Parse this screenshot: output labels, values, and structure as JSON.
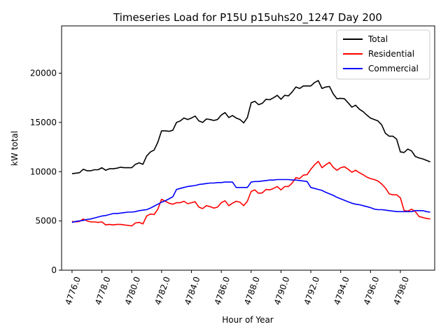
{
  "chart_data": {
    "type": "line",
    "title": "Timeseries Load for P15U p15uhs20_1247  Day 200",
    "xlabel": "Hour of Year",
    "ylabel": "kW total",
    "xlim": [
      4775.3,
      4800.3
    ],
    "ylim": [
      0,
      24800
    ],
    "x_ticks": [
      4776,
      4778,
      4780,
      4782,
      4784,
      4786,
      4788,
      4790,
      4792,
      4794,
      4796,
      4798
    ],
    "x_tick_labels": [
      "4776.0",
      "4778.0",
      "4780.0",
      "4782.0",
      "4784.0",
      "4786.0",
      "4788.0",
      "4790.0",
      "4792.0",
      "4794.0",
      "4796.0",
      "4798.0"
    ],
    "y_ticks": [
      0,
      5000,
      10000,
      15000,
      20000
    ],
    "y_tick_labels": [
      "0",
      "5000",
      "10000",
      "15000",
      "20000"
    ],
    "legend_position": "top-right",
    "x_start": 4776.0,
    "x_step": 0.25,
    "series": [
      {
        "name": "Total",
        "color": "#000000",
        "values": [
          9800,
          9850,
          9900,
          10250,
          10100,
          10100,
          10200,
          10200,
          10400,
          10150,
          10300,
          10300,
          10350,
          10450,
          10400,
          10400,
          10400,
          10750,
          10900,
          10750,
          11600,
          12000,
          12200,
          13000,
          14150,
          14150,
          14100,
          14200,
          15000,
          15150,
          15450,
          15300,
          15450,
          15650,
          15150,
          15000,
          15350,
          15300,
          15200,
          15300,
          15750,
          16000,
          15500,
          15700,
          15450,
          15300,
          14950,
          15500,
          17000,
          17150,
          16800,
          16950,
          17350,
          17300,
          17500,
          17750,
          17350,
          17750,
          17700,
          18100,
          18600,
          18450,
          18700,
          18700,
          18700,
          19050,
          19250,
          18450,
          18600,
          18650,
          17900,
          17400,
          17450,
          17400,
          17000,
          16550,
          16750,
          16350,
          16100,
          15750,
          15450,
          15300,
          15150,
          14750,
          13900,
          13600,
          13600,
          13300,
          12000,
          11950,
          12300,
          12100,
          11550,
          11400,
          11300,
          11150,
          11000
        ]
      },
      {
        "name": "Residential",
        "color": "#ff0000",
        "values": [
          4950,
          4900,
          4950,
          5200,
          5000,
          4900,
          4900,
          4850,
          4900,
          4600,
          4650,
          4600,
          4650,
          4650,
          4600,
          4550,
          4500,
          4800,
          4850,
          4700,
          5500,
          5700,
          5650,
          6200,
          7200,
          7000,
          6800,
          6700,
          6850,
          6850,
          7000,
          6750,
          6850,
          6950,
          6400,
          6250,
          6550,
          6450,
          6300,
          6400,
          6850,
          7050,
          6550,
          6800,
          7000,
          6900,
          6550,
          7000,
          8000,
          8150,
          7800,
          7850,
          8200,
          8150,
          8300,
          8500,
          8150,
          8500,
          8500,
          8850,
          9400,
          9300,
          9650,
          9700,
          10250,
          10700,
          11050,
          10400,
          10700,
          10950,
          10450,
          10150,
          10400,
          10500,
          10250,
          9950,
          10150,
          9900,
          9700,
          9450,
          9300,
          9200,
          9050,
          8750,
          8350,
          7750,
          7650,
          7650,
          7350,
          6050,
          6000,
          6200,
          5950,
          5450,
          5350,
          5250,
          5200
        ]
      },
      {
        "name": "Commercial",
        "color": "#0000ff",
        "values": [
          4850,
          4950,
          5000,
          5050,
          5150,
          5200,
          5300,
          5400,
          5500,
          5550,
          5650,
          5750,
          5750,
          5800,
          5850,
          5900,
          5900,
          5950,
          6050,
          6100,
          6150,
          6300,
          6500,
          6700,
          6900,
          7050,
          7250,
          7450,
          8200,
          8300,
          8400,
          8500,
          8550,
          8600,
          8700,
          8750,
          8800,
          8850,
          8850,
          8900,
          8900,
          8950,
          8950,
          8950,
          8400,
          8400,
          8400,
          8400,
          8950,
          9000,
          9000,
          9050,
          9100,
          9150,
          9150,
          9200,
          9200,
          9200,
          9200,
          9150,
          9150,
          9100,
          9050,
          9000,
          8400,
          8300,
          8200,
          8100,
          7900,
          7750,
          7600,
          7400,
          7250,
          7100,
          6950,
          6800,
          6700,
          6650,
          6550,
          6450,
          6350,
          6200,
          6150,
          6150,
          6100,
          6050,
          6000,
          5950,
          5950,
          5950,
          5950,
          5950,
          6050,
          6050,
          6050,
          5950,
          5900
        ]
      }
    ]
  }
}
